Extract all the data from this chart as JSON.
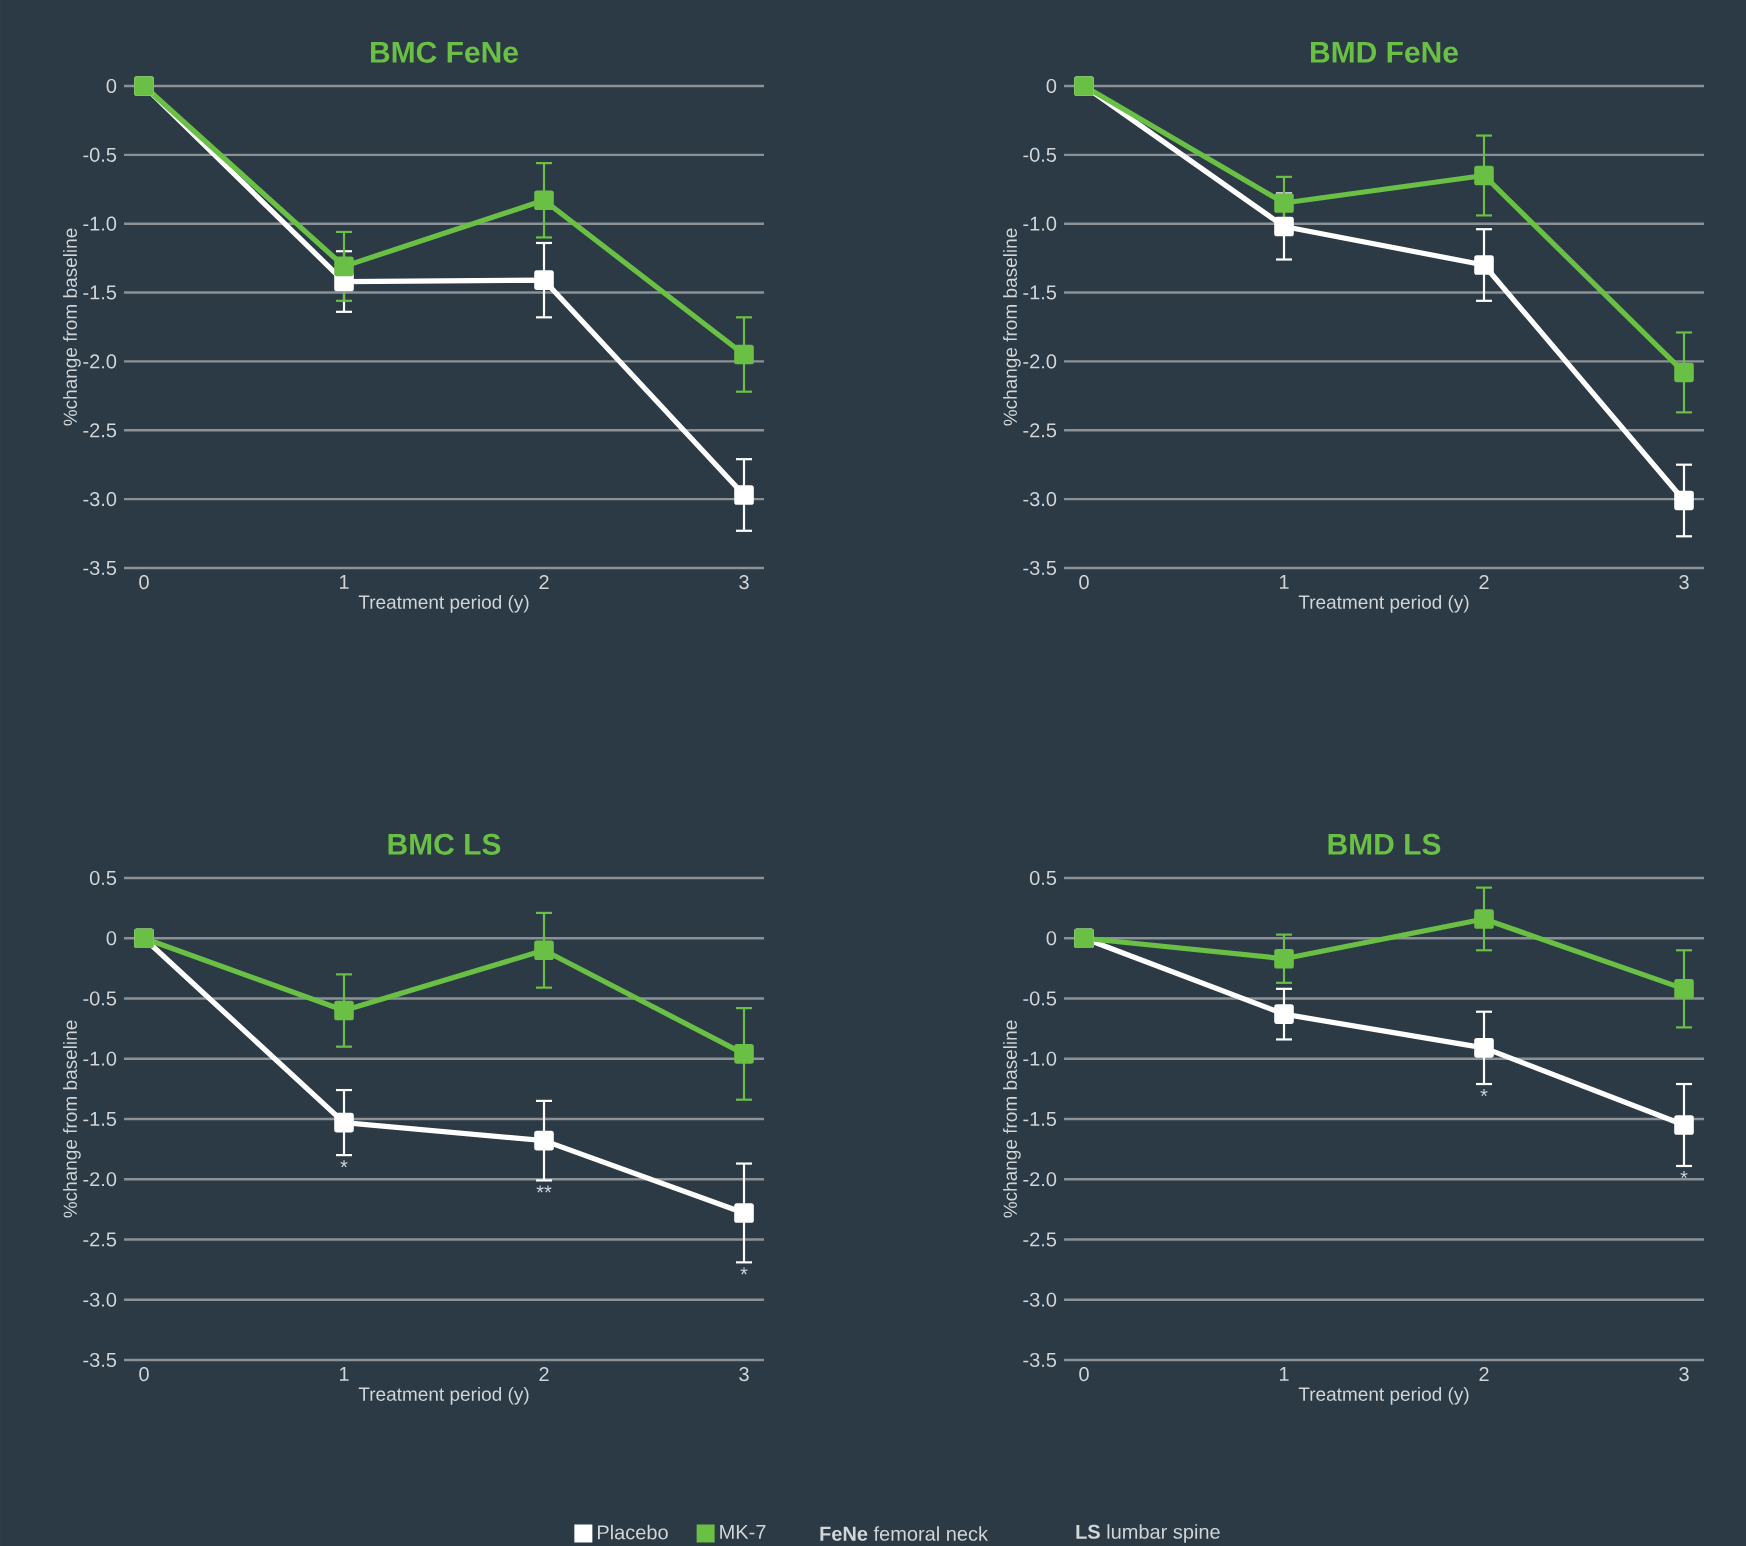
{
  "chart_data": [
    {
      "type": "line",
      "title": "BMC FeNe",
      "xlabel": "Treatment period (y)",
      "ylabel": "%change from baseline",
      "x": [
        0,
        1,
        2,
        3
      ],
      "xlim": [
        -0.1,
        3.1
      ],
      "xticks": [
        0,
        1,
        2,
        3
      ],
      "ylim": [
        -3.5,
        0
      ],
      "yticks": [
        {
          "value": -3.5,
          "label": "-3.5"
        },
        {
          "value": -3,
          "label": "-3.0"
        },
        {
          "value": -2.5,
          "label": "-2.5"
        },
        {
          "value": -2,
          "label": "-2.0"
        },
        {
          "value": -1.5,
          "label": "-1.5"
        },
        {
          "value": -1,
          "label": "-1.0"
        },
        {
          "value": -0.5,
          "label": "-0.5"
        },
        0
      ],
      "grid": "y",
      "marker": "square",
      "line_style": "solid",
      "series": [
        {
          "color": "#ffffff",
          "values": [
            0,
            -1.42,
            -1.41,
            -2.97
          ],
          "errors": [
            null,
            0.22,
            0.27,
            0.26
          ]
        },
        {
          "color": "#6abf45",
          "values": [
            0,
            -1.31,
            -0.83,
            -1.95
          ],
          "errors": [
            null,
            0.25,
            0.27,
            0.27
          ]
        }
      ]
    },
    {
      "type": "line",
      "title": "BMD FeNe",
      "xlabel": "Treatment period (y)",
      "ylabel": "%change from baseline",
      "x": [
        0,
        1,
        2,
        3
      ],
      "xlim": [
        -0.1,
        3.1
      ],
      "xticks": [
        0,
        1,
        2,
        3
      ],
      "ylim": [
        -3.5,
        0
      ],
      "yticks": [
        {
          "value": -3.5,
          "label": "-3.5"
        },
        {
          "value": -3,
          "label": "-3.0"
        },
        {
          "value": -2.5,
          "label": "-2.5"
        },
        {
          "value": -2,
          "label": "-2.0"
        },
        {
          "value": -1.5,
          "label": "-1.5"
        },
        {
          "value": -1,
          "label": "-1.0"
        },
        {
          "value": -0.5,
          "label": "-0.5"
        },
        0
      ],
      "grid": "y",
      "marker": "square",
      "line_style": "solid",
      "series": [
        {
          "color": "#ffffff",
          "values": [
            0,
            -1.02,
            -1.3,
            -3.01
          ],
          "errors": [
            null,
            0.24,
            0.26,
            0.26
          ]
        },
        {
          "color": "#6abf45",
          "values": [
            0,
            -0.85,
            -0.65,
            -2.08
          ],
          "errors": [
            null,
            0.19,
            0.29,
            0.29
          ]
        }
      ]
    },
    {
      "type": "line",
      "title": "BMC LS",
      "xlabel": "Treatment period (y)",
      "ylabel": "%change from baseline",
      "x": [
        0,
        1,
        2,
        3
      ],
      "xlim": [
        -0.1,
        3.1
      ],
      "xticks": [
        0,
        1,
        2,
        3
      ],
      "ylim": [
        -3.5,
        0.5
      ],
      "yticks": [
        {
          "value": -3.5,
          "label": "-3.5"
        },
        {
          "value": -3,
          "label": "-3.0"
        },
        {
          "value": -2.5,
          "label": "-2.5"
        },
        {
          "value": -2,
          "label": "-2.0"
        },
        {
          "value": -1.5,
          "label": "-1.5"
        },
        {
          "value": -1,
          "label": "-1.0"
        },
        {
          "value": -0.5,
          "label": "-0.5"
        },
        0,
        0.5
      ],
      "grid": "y",
      "marker": "square",
      "line_style": "solid",
      "legend": "bottom",
      "series": [
        {
          "name": "Placebo",
          "color": "#ffffff",
          "values": [
            0,
            -1.53,
            -1.68,
            -2.28
          ],
          "errors": [
            null,
            0.27,
            0.33,
            0.41
          ]
        },
        {
          "name": "MK-7",
          "color": "#6abf45",
          "values": [
            0,
            -0.6,
            -0.1,
            -0.96
          ],
          "errors": [
            null,
            0.3,
            0.31,
            0.38
          ]
        }
      ],
      "annotations": [
        {
          "text": "*",
          "x": 1,
          "y": -1.53
        },
        {
          "text": "**",
          "x": 2,
          "y": -1.68
        },
        {
          "text": "*",
          "x": 3,
          "y": -2.28
        },
        "**FeNe** femoral neck",
        "**LS** lumbar spine"
      ]
    },
    {
      "type": "line",
      "title": "BMD LS",
      "xlabel": "Treatment period (y)",
      "ylabel": "%change from baseline",
      "x": [
        0,
        1,
        2,
        3
      ],
      "xlim": [
        -0.1,
        3.1
      ],
      "xticks": [
        0,
        1,
        2,
        3
      ],
      "ylim": [
        -3.5,
        0.5
      ],
      "yticks": [
        {
          "value": -3.5,
          "label": "-3.5"
        },
        {
          "value": -3,
          "label": "-3.0"
        },
        {
          "value": -2.5,
          "label": "-2.5"
        },
        {
          "value": -2,
          "label": "-2.0"
        },
        {
          "value": -1.5,
          "label": "-1.5"
        },
        {
          "value": -1,
          "label": "-1.0"
        },
        {
          "value": -0.5,
          "label": "-0.5"
        },
        0,
        0.5
      ],
      "grid": "y",
      "marker": "square",
      "line_style": "solid",
      "series": [
        {
          "color": "#ffffff",
          "values": [
            0,
            -0.63,
            -0.91,
            -1.55
          ],
          "errors": [
            null,
            0.21,
            0.3,
            0.34
          ]
        },
        {
          "color": "#6abf45",
          "values": [
            0,
            -0.17,
            0.16,
            -0.42
          ],
          "errors": [
            null,
            0.2,
            0.26,
            0.32
          ]
        }
      ],
      "annotations": [
        {
          "text": "*",
          "x": 2,
          "y": -0.91
        },
        {
          "text": "*",
          "x": 3,
          "y": -1.55
        }
      ]
    }
  ]
}
